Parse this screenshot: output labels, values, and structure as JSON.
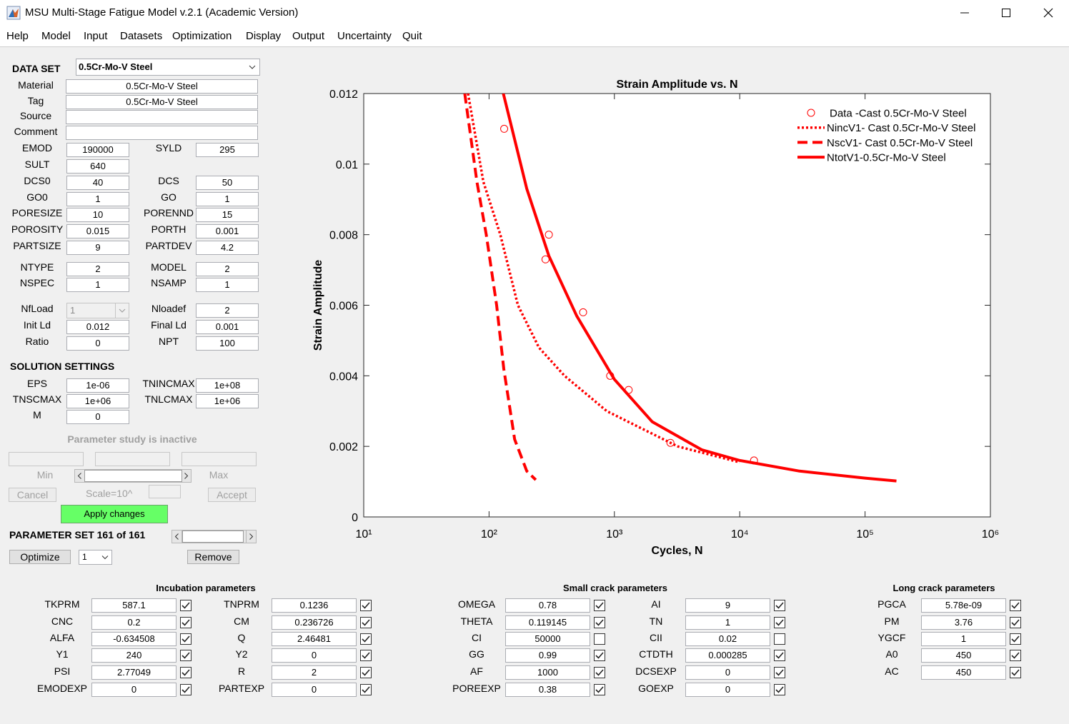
{
  "window": {
    "title": "MSU Multi-Stage Fatigue Model v.2.1 (Academic Version)"
  },
  "menu": [
    "Help",
    "Model",
    "Input",
    "Datasets",
    "Optimization",
    "Display",
    "Output",
    "Uncertainty",
    "Quit"
  ],
  "dataset": {
    "label": "DATA SET",
    "selected": "0.5Cr-Mo-V Steel"
  },
  "material_fields": [
    {
      "label": "Material",
      "value": "0.5Cr-Mo-V Steel"
    },
    {
      "label": "Tag",
      "value": "0.5Cr-Mo-V Steel"
    },
    {
      "label": "Source"
    },
    {
      "label": "Comment"
    }
  ],
  "parameters": [
    [
      {
        "label": "EMOD",
        "value": "190000"
      },
      {
        "label": "SYLD",
        "value": "295"
      }
    ],
    [
      {
        "label": "SULT",
        "value": "640"
      }
    ],
    [
      {
        "label": "DCS0",
        "value": "40"
      },
      {
        "label": "DCS",
        "value": "50"
      }
    ],
    [
      {
        "label": "GO0",
        "value": "1"
      },
      {
        "label": "GO",
        "value": "1"
      }
    ],
    [
      {
        "label": "PORESIZE",
        "value": "10"
      },
      {
        "label": "PORENND",
        "value": "15"
      }
    ],
    [
      {
        "label": "POROSITY",
        "value": "0.015"
      },
      {
        "label": "PORTH",
        "value": "0.001"
      }
    ],
    [
      {
        "label": "PARTSIZE",
        "value": "9"
      },
      {
        "label": "PARTDEV",
        "value": "4.2"
      }
    ],
    [
      {
        "label": "NTYPE",
        "value": "2"
      },
      {
        "label": "MODEL",
        "value": "2"
      }
    ],
    [
      {
        "label": "NSPEC",
        "value": "1"
      },
      {
        "label": "NSAMP",
        "value": "1"
      }
    ],
    [
      {
        "label": "NfLoad",
        "value": "1",
        "control": "dropdown",
        "enabled": false
      },
      {
        "label": "Nloadef",
        "value": "2"
      }
    ],
    [
      {
        "label": "Init Ld",
        "value": "0.012"
      },
      {
        "label": "Final Ld",
        "value": "0.001"
      }
    ],
    [
      {
        "label": "Ratio",
        "value": "0"
      },
      {
        "label": "NPT",
        "value": "100"
      }
    ]
  ],
  "solution_settings": {
    "title": "SOLUTION SETTINGS",
    "rows": [
      [
        {
          "label": "EPS",
          "value": "1e-06"
        },
        {
          "label": "TNINCMAX",
          "value": "1e+08"
        }
      ],
      [
        {
          "label": "TNSCMAX",
          "value": "1e+06"
        },
        {
          "label": "TNLCMAX",
          "value": "1e+06"
        }
      ],
      [
        {
          "label": "M",
          "value": "0"
        }
      ]
    ]
  },
  "parameter_study": {
    "status": "Parameter study is inactive",
    "min_label": "Min",
    "max_label": "Max",
    "cancel": "Cancel",
    "scale_label": "Scale=10^",
    "accept": "Accept",
    "apply": "Apply changes",
    "set_label": "PARAMETER SET 161 of 161",
    "optimize": "Optimize",
    "optimize_count": "1",
    "remove": "Remove"
  },
  "groups": [
    {
      "title": "Incubation parameters",
      "columns": [
        [
          {
            "label": "TKPRM",
            "value": "587.1",
            "checked": true
          },
          {
            "label": "CNC",
            "value": "0.2",
            "checked": true
          },
          {
            "label": "ALFA",
            "value": "-0.634508",
            "checked": true
          },
          {
            "label": "Y1",
            "value": "240",
            "checked": true
          },
          {
            "label": "PSI",
            "value": "2.77049",
            "checked": true
          },
          {
            "label": "EMODEXP",
            "value": "0",
            "checked": true
          }
        ],
        [
          {
            "label": "TNPRM",
            "value": "0.1236",
            "checked": true
          },
          {
            "label": "CM",
            "value": "0.236726",
            "checked": true
          },
          {
            "label": "Q",
            "value": "2.46481",
            "checked": true
          },
          {
            "label": "Y2",
            "value": "0",
            "checked": true
          },
          {
            "label": "R",
            "value": "2",
            "checked": true
          },
          {
            "label": "PARTEXP",
            "value": "0",
            "checked": true
          }
        ]
      ]
    },
    {
      "title": "Small crack parameters",
      "columns": [
        [
          {
            "label": "OMEGA",
            "value": "0.78",
            "checked": true
          },
          {
            "label": "THETA",
            "value": "0.119145",
            "checked": true
          },
          {
            "label": "CI",
            "value": "50000",
            "checked": false
          },
          {
            "label": "GG",
            "value": "0.99",
            "checked": true
          },
          {
            "label": "AF",
            "value": "1000",
            "checked": true
          },
          {
            "label": "POREEXP",
            "value": "0.38",
            "checked": true
          }
        ],
        [
          {
            "label": "AI",
            "value": "9",
            "checked": true
          },
          {
            "label": "TN",
            "value": "1",
            "checked": true
          },
          {
            "label": "CII",
            "value": "0.02",
            "checked": false
          },
          {
            "label": "CTDTH",
            "value": "0.000285",
            "checked": true
          },
          {
            "label": "DCSEXP",
            "value": "0",
            "checked": true
          },
          {
            "label": "GOEXP",
            "value": "0",
            "checked": true
          }
        ]
      ]
    },
    {
      "title": "Long crack parameters",
      "columns": [
        [
          {
            "label": "PGCA",
            "value": "5.78e-09",
            "checked": true
          },
          {
            "label": "PM",
            "value": "3.76",
            "checked": true
          },
          {
            "label": "YGCF",
            "value": "1",
            "checked": true
          },
          {
            "label": "A0",
            "value": "450",
            "checked": true
          },
          {
            "label": "AC",
            "value": "450",
            "checked": true
          }
        ]
      ]
    }
  ],
  "chart_data": {
    "type": "line",
    "title": "Strain Amplitude vs. N",
    "xlabel": "Cycles, N",
    "ylabel": "Strain Amplitude",
    "xscale": "log",
    "grid": false,
    "legend": "northeast",
    "xlim": [
      10,
      1000000
    ],
    "xticks": [
      {
        "value": 10,
        "label": "10¹"
      },
      {
        "value": 100,
        "label": "10²"
      },
      {
        "value": 1000,
        "label": "10³"
      },
      {
        "value": 10000,
        "label": "10⁴"
      },
      {
        "value": 100000,
        "label": "10⁵"
      },
      {
        "value": 1000000,
        "label": "10⁶"
      }
    ],
    "ylim": [
      0,
      0.012
    ],
    "yticks": [
      0,
      0.002,
      0.004,
      0.006,
      0.008,
      0.01,
      0.012
    ],
    "series": [
      {
        "name": "Data -Cast 0.5Cr-Mo-V Steel",
        "color": "#ff0000",
        "style": "markers",
        "marker": "o",
        "x": [
          132,
          282,
          300,
          563,
          925,
          1300,
          2800,
          13000
        ],
        "values": [
          0.011,
          0.0073,
          0.008,
          0.0058,
          0.004,
          0.0036,
          0.0021,
          0.0016
        ]
      },
      {
        "name": "NincV1- Cast 0.5Cr-Mo-V Steel",
        "color": "#ff0000",
        "style": "dotted",
        "x": [
          68,
          90,
          123,
          170,
          250,
          400,
          870,
          3200,
          10000
        ],
        "values": [
          0.012,
          0.0095,
          0.008,
          0.006,
          0.0048,
          0.004,
          0.003,
          0.002,
          0.00155
        ]
      },
      {
        "name": "NscV1- Cast 0.5Cr-Mo-V Steel",
        "color": "#ff0000",
        "style": "dashed",
        "x": [
          64,
          80,
          95,
          115,
          131,
          160,
          200,
          236
        ],
        "values": [
          0.012,
          0.0095,
          0.008,
          0.006,
          0.0042,
          0.0022,
          0.0013,
          0.00105
        ]
      },
      {
        "name": "NtotV1-0.5Cr-Mo-V Steel",
        "color": "#ff0000",
        "style": "solid",
        "x": [
          130,
          200,
          300,
          500,
          1000,
          2000,
          5000,
          10000,
          30000,
          100000,
          178000
        ],
        "values": [
          0.012,
          0.0093,
          0.0074,
          0.0057,
          0.0039,
          0.0027,
          0.0019,
          0.0016,
          0.0013,
          0.0011,
          0.00102
        ]
      }
    ]
  }
}
